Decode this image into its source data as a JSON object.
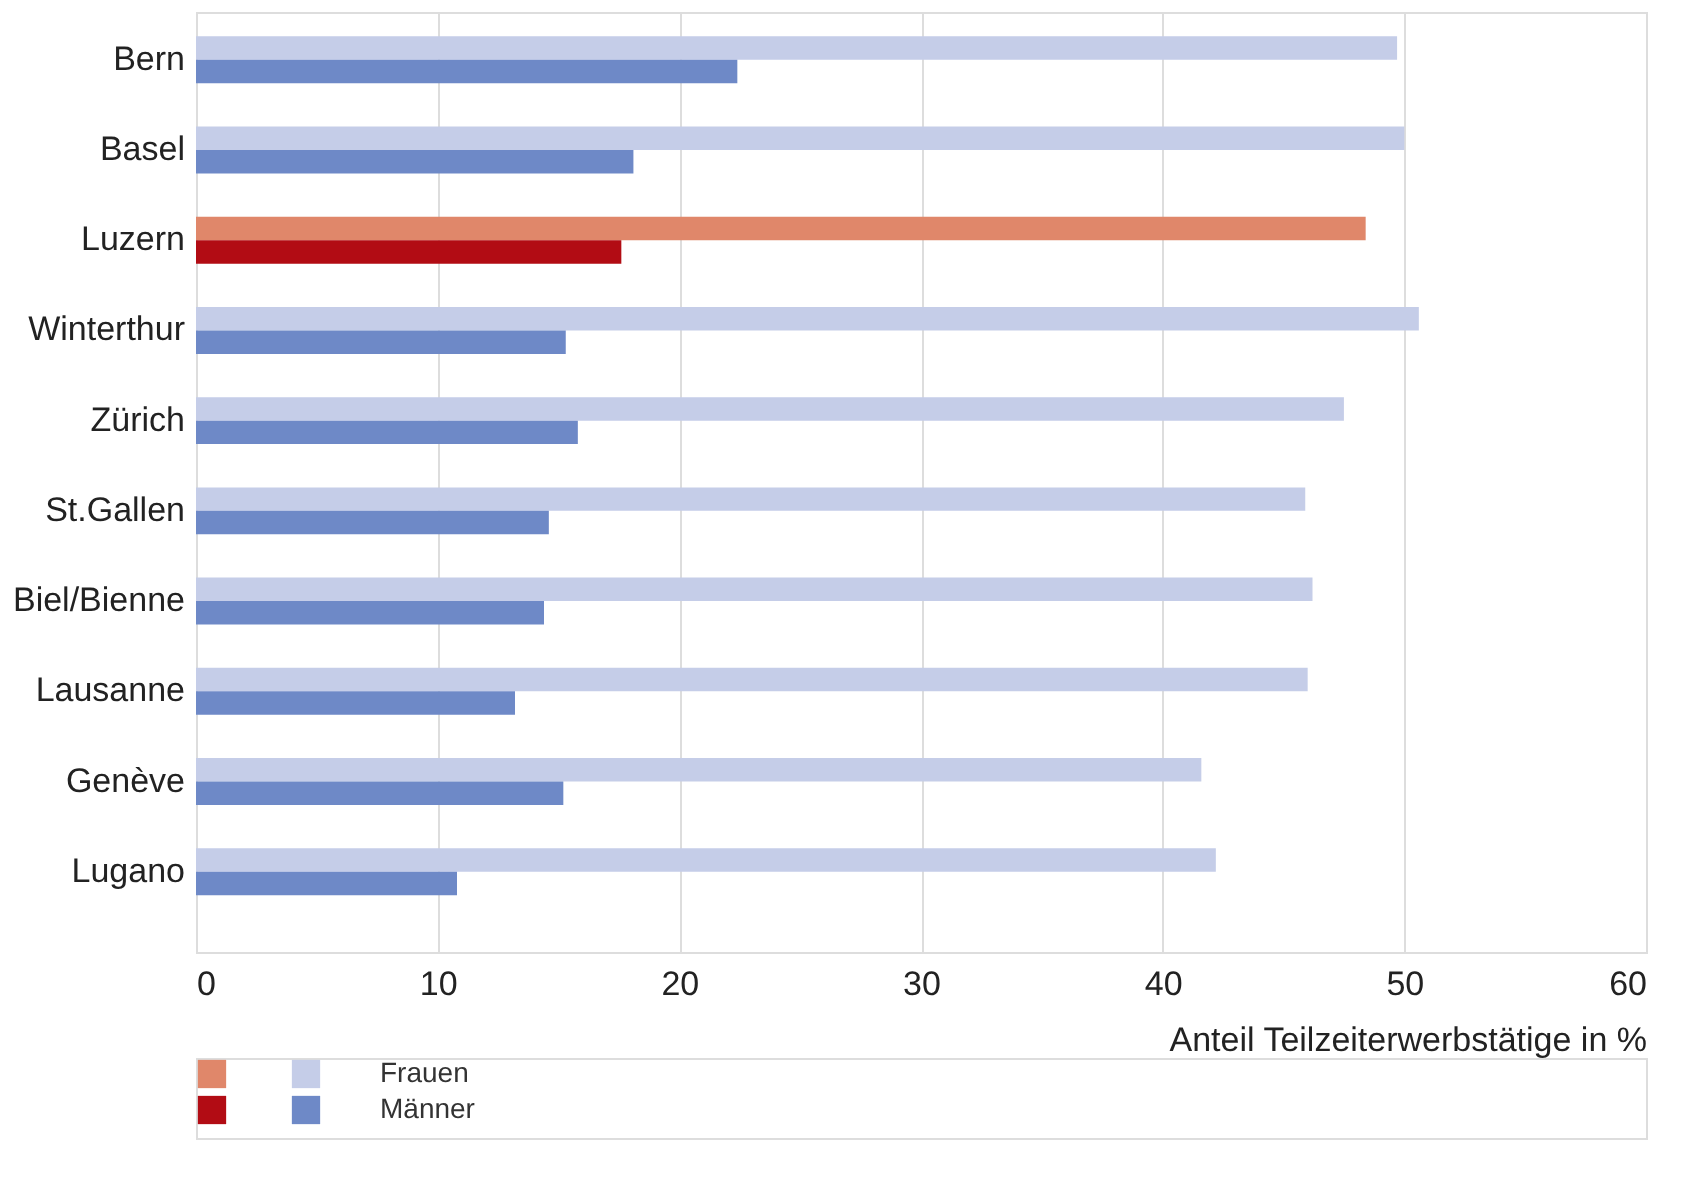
{
  "chart_data": {
    "type": "bar",
    "orientation": "horizontal",
    "xlabel": "Anteil Teilzeiterwerbstätige in %",
    "categories": [
      "Bern",
      "Basel",
      "Luzern",
      "Winterthur",
      "Zürich",
      "St.Gallen",
      "Biel/Bienne",
      "Lausanne",
      "Genève",
      "Lugano"
    ],
    "series": [
      {
        "name": "Frauen",
        "color": "#c5cde8",
        "colors": [
          "#c5cde8",
          "#c5cde8",
          "#e0876a",
          "#c5cde8",
          "#c5cde8",
          "#c5cde8",
          "#c5cde8",
          "#c5cde8",
          "#c5cde8",
          "#c5cde8"
        ],
        "values": [
          49.7,
          50.0,
          48.4,
          50.6,
          47.5,
          45.9,
          46.2,
          46.0,
          41.6,
          42.2
        ]
      },
      {
        "name": "Männer",
        "color": "#6e89c7",
        "colors": [
          "#6e89c7",
          "#6e89c7",
          "#b20c14",
          "#6e89c7",
          "#6e89c7",
          "#6e89c7",
          "#6e89c7",
          "#6e89c7",
          "#6e89c7",
          "#6e89c7"
        ],
        "values": [
          22.4,
          18.1,
          17.6,
          15.3,
          15.8,
          14.6,
          14.4,
          13.2,
          15.2,
          10.8
        ]
      }
    ],
    "xlim": [
      0,
      60
    ],
    "xticks": [
      0,
      10,
      20,
      30,
      40,
      50,
      60
    ],
    "grid": "x",
    "legend": "bottom left"
  }
}
